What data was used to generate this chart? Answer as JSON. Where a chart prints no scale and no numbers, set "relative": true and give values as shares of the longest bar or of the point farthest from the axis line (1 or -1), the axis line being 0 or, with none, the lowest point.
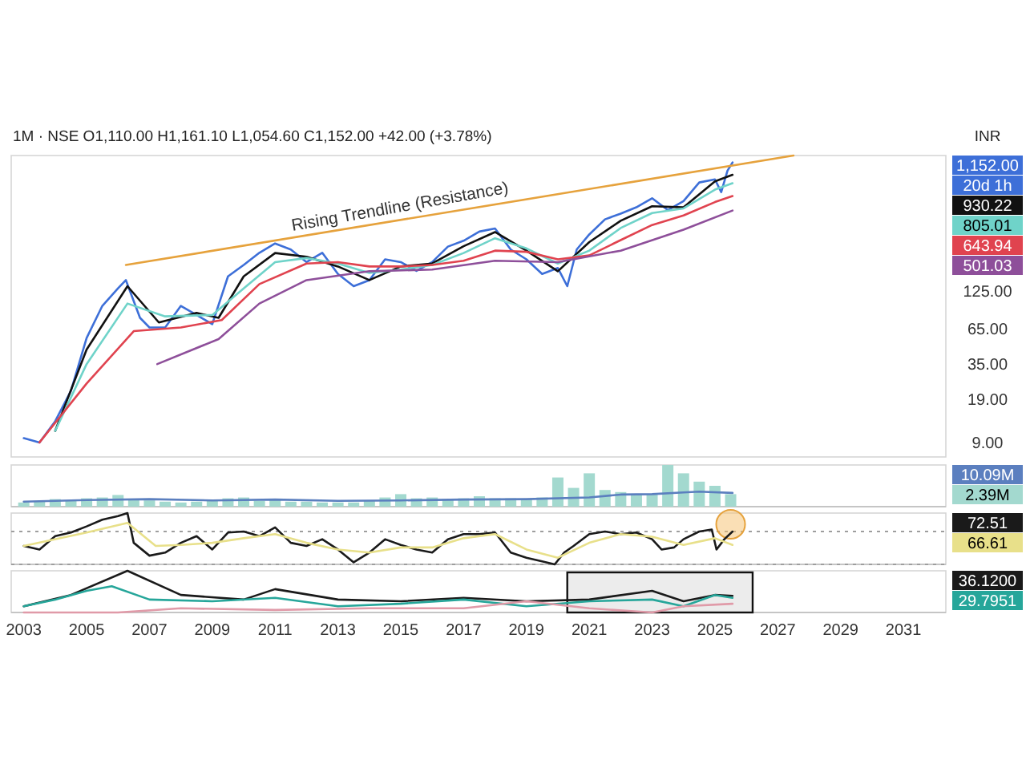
{
  "chart_data": [
    {
      "type": "line",
      "title": "1M · NSE O1,110.00 H1,161.10 L1,054.60 C1,152.00 +42.00 (+3.78%)",
      "ylabel": "INR",
      "log": true,
      "ylim": [
        7,
        1300
      ],
      "yticks": [
        {
          "value": 9,
          "label": "9.00"
        },
        {
          "value": 19,
          "label": "19.00"
        },
        {
          "value": 35,
          "label": "35.00"
        },
        {
          "value": 65,
          "label": "65.00"
        },
        {
          "value": 125,
          "label": "125.00"
        }
      ],
      "xlim": [
        2002.6,
        2032.35
      ],
      "tick_labels": "y",
      "series": [
        {
          "color": "#3d6fd8",
          "x": [
            2003,
            2003.5,
            2004,
            2004.5,
            2005,
            2005.5,
            2006,
            2006.25,
            2006.7,
            2007,
            2007.5,
            2008,
            2008.5,
            2009,
            2009.5,
            2010,
            2010.5,
            2011,
            2011.5,
            2012,
            2012.5,
            2013,
            2013.5,
            2014,
            2014.5,
            2015,
            2015.5,
            2016,
            2016.5,
            2017,
            2017.5,
            2018,
            2018.5,
            2019,
            2019.5,
            2020,
            2020.3,
            2020.6,
            2021,
            2021.5,
            2022,
            2022.5,
            2023,
            2023.5,
            2024,
            2024.5,
            2025,
            2025.2,
            2025.4,
            2025.56
          ],
          "values": [
            9.7,
            9,
            13,
            22,
            55,
            96,
            130,
            150,
            78,
            66,
            66,
            96,
            82,
            70,
            160,
            195,
            241,
            283,
            255,
            205,
            241,
            167,
            135,
            150,
            215,
            205,
            176,
            205,
            268,
            297,
            348,
            367,
            255,
            215,
            167,
            185,
            135,
            255,
            331,
            430,
            475,
            530,
            620,
            505,
            590,
            815,
            860,
            690,
            1000,
            1152
          ]
        },
        {
          "color": "#111111",
          "x": [
            2004,
            2005,
            2006.3,
            2007.3,
            2008.5,
            2009.2,
            2010,
            2011,
            2012,
            2013,
            2014,
            2015,
            2016,
            2017,
            2018,
            2019,
            2020,
            2021,
            2022,
            2023,
            2024,
            2025,
            2025.56
          ],
          "values": [
            11,
            45,
            135,
            72,
            85,
            78,
            160,
            240,
            225,
            190,
            150,
            190,
            200,
            270,
            345,
            250,
            175,
            290,
            420,
            540,
            530,
            830,
            930.22
          ]
        },
        {
          "color": "#6fd3c9",
          "x": [
            2004,
            2005,
            2006.3,
            2007.5,
            2009,
            2010,
            2011,
            2012,
            2013,
            2014,
            2015,
            2016,
            2017,
            2018,
            2019,
            2020,
            2021,
            2022,
            2023,
            2024,
            2025,
            2025.56
          ],
          "values": [
            11,
            35,
            100,
            80,
            82,
            130,
            205,
            220,
            200,
            170,
            180,
            195,
            240,
            310,
            260,
            200,
            250,
            370,
            480,
            520,
            720,
            805.01
          ]
        },
        {
          "color": "#e0434f",
          "x": [
            2003.5,
            2005,
            2006.5,
            2008,
            2009.3,
            2010.5,
            2012,
            2013,
            2014,
            2015,
            2016,
            2017,
            2018,
            2019,
            2020,
            2021,
            2022,
            2023,
            2024,
            2025,
            2025.56
          ],
          "values": [
            9,
            25,
            62,
            66,
            75,
            140,
            200,
            205,
            190,
            190,
            195,
            210,
            250,
            245,
            215,
            230,
            300,
            390,
            460,
            580,
            643.94
          ]
        },
        {
          "color": "#8e4f9a",
          "x": [
            2007.25,
            2009.2,
            2010.5,
            2012,
            2014,
            2016,
            2018,
            2020,
            2022,
            2024,
            2025.56
          ],
          "values": [
            35,
            54,
            100,
            150,
            175,
            180,
            210,
            205,
            250,
            360,
            501.03
          ]
        },
        {
          "color": "#e6a23c",
          "x": [
            2006.25,
            2027.5
          ],
          "values": [
            195,
            1300
          ]
        }
      ],
      "annotations": [
        {
          "text": "Rising Trendline (Resistance)",
          "x": 2015,
          "y": 426
        },
        "1,152.00",
        "20d 1h",
        "930.22",
        "805.01",
        "643.94",
        "501.03"
      ]
    },
    {
      "type": "bar",
      "relative": true,
      "xlim": [
        2002.6,
        2032.35
      ],
      "tick_labels": false,
      "series": [
        {
          "type": "line",
          "color": "#5b7fbf",
          "x": [
            2003,
            2005,
            2007,
            2009,
            2011,
            2013,
            2015,
            2017,
            2019,
            2021,
            2022,
            2023,
            2024,
            2024.5,
            2025.56
          ],
          "values": [
            0.12,
            0.16,
            0.18,
            0.15,
            0.17,
            0.14,
            0.15,
            0.17,
            0.18,
            0.22,
            0.29,
            0.3,
            0.34,
            0.36,
            0.33
          ]
        },
        {
          "color": "#a3d9cf",
          "x": [
            2003,
            2003.5,
            2004,
            2004.5,
            2005,
            2005.5,
            2006,
            2006.5,
            2007,
            2007.5,
            2008,
            2008.5,
            2009,
            2009.5,
            2010,
            2010.5,
            2011,
            2011.5,
            2012,
            2012.5,
            2013,
            2013.5,
            2014,
            2014.5,
            2015,
            2015.5,
            2016,
            2016.5,
            2017,
            2017.5,
            2018,
            2018.5,
            2019,
            2019.5,
            2020,
            2020.5,
            2021,
            2021.5,
            2022,
            2022.5,
            2023,
            2023.5,
            2024,
            2024.5,
            2025,
            2025.5
          ],
          "values": [
            0.1,
            0.12,
            0.18,
            0.15,
            0.2,
            0.22,
            0.28,
            0.18,
            0.15,
            0.12,
            0.1,
            0.12,
            0.14,
            0.2,
            0.22,
            0.14,
            0.18,
            0.12,
            0.12,
            0.1,
            0.1,
            0.1,
            0.15,
            0.22,
            0.3,
            0.2,
            0.22,
            0.18,
            0.2,
            0.25,
            0.2,
            0.2,
            0.18,
            0.22,
            0.7,
            0.45,
            0.8,
            0.4,
            0.35,
            0.3,
            0.3,
            1,
            0.8,
            0.6,
            0.5,
            0.3
          ]
        }
      ],
      "annotations": [
        "10.09M",
        "2.39M"
      ]
    },
    {
      "type": "line",
      "relative": true,
      "xlim": [
        2002.6,
        2032.35
      ],
      "tick_labels": false,
      "ref_lines": [
        {
          "axis": "y",
          "value": 0.64,
          "color": "#9e9e9e",
          "line_style": "dotted"
        },
        {
          "axis": "y",
          "value": 0,
          "color": "#9e9e9e",
          "line_style": "dotted"
        }
      ],
      "series": [
        {
          "color": "#1a1a1a",
          "x": [
            2003,
            2003.5,
            2004,
            2004.5,
            2005,
            2005.5,
            2006,
            2006.3,
            2006.5,
            2007,
            2007.5,
            2008,
            2008.5,
            2009,
            2009.5,
            2010,
            2010.5,
            2011,
            2011.5,
            2012,
            2012.5,
            2013,
            2013.5,
            2014,
            2014.5,
            2015,
            2015.5,
            2016,
            2016.5,
            2017,
            2017.5,
            2018,
            2018.5,
            2019,
            2019.5,
            2019.9,
            2020.2,
            2020.5,
            2021,
            2021.5,
            2022,
            2022.5,
            2023,
            2023.3,
            2023.7,
            2024,
            2024.5,
            2024.9,
            2025.05,
            2025.3,
            2025.56
          ],
          "values": [
            0.36,
            0.29,
            0.55,
            0.62,
            0.74,
            0.87,
            0.94,
            1,
            0.42,
            0.17,
            0.23,
            0.42,
            0.55,
            0.29,
            0.62,
            0.64,
            0.55,
            0.72,
            0.42,
            0.36,
            0.49,
            0.29,
            0.04,
            0.23,
            0.49,
            0.38,
            0.29,
            0.23,
            0.49,
            0.59,
            0.59,
            0.62,
            0.23,
            0.13,
            0.06,
            0,
            0.23,
            0.36,
            0.59,
            0.64,
            0.59,
            0.62,
            0.49,
            0.29,
            0.33,
            0.49,
            0.64,
            0.68,
            0.29,
            0.49,
            0.64
          ]
        },
        {
          "color": "#e8e08a",
          "x": [
            2003,
            2005,
            2006.3,
            2007.2,
            2008,
            2009,
            2010,
            2011,
            2012,
            2013,
            2014,
            2015,
            2016,
            2017,
            2018,
            2019,
            2020,
            2021,
            2022,
            2023,
            2024,
            2025,
            2025.56
          ],
          "values": [
            0.36,
            0.62,
            0.81,
            0.36,
            0.38,
            0.42,
            0.51,
            0.59,
            0.42,
            0.29,
            0.23,
            0.33,
            0.33,
            0.51,
            0.59,
            0.29,
            0.13,
            0.42,
            0.59,
            0.54,
            0.38,
            0.51,
            0.38
          ]
        }
      ],
      "annotations": [
        "72.51",
        "66.61"
      ]
    },
    {
      "type": "line",
      "relative": true,
      "xlim": [
        2002.6,
        2032.35
      ],
      "xticks": [
        2003,
        2005,
        2007,
        2009,
        2011,
        2013,
        2015,
        2017,
        2019,
        2021,
        2023,
        2025,
        2027,
        2029,
        2031
      ],
      "tick_labels": "x",
      "bands": [
        {
          "axis": "x",
          "from": 2020.3,
          "to": 2026.2,
          "color": "#ececec"
        }
      ],
      "series": [
        {
          "color": "#1a1a1a",
          "x": [
            2003,
            2004.5,
            2006.3,
            2008,
            2010,
            2011,
            2013,
            2015,
            2017,
            2019,
            2021,
            2023,
            2024,
            2025,
            2025.56
          ],
          "values": [
            0.15,
            0.42,
            1,
            0.42,
            0.31,
            0.56,
            0.31,
            0.27,
            0.35,
            0.27,
            0.31,
            0.52,
            0.27,
            0.42,
            0.4
          ]
        },
        {
          "color": "#26a69a",
          "x": [
            2003,
            2004,
            2005,
            2005.8,
            2007,
            2009,
            2011,
            2013,
            2015,
            2017,
            2019,
            2021,
            2023,
            2024,
            2025,
            2025.56
          ],
          "values": [
            0.15,
            0.31,
            0.52,
            0.63,
            0.31,
            0.27,
            0.35,
            0.15,
            0.21,
            0.31,
            0.15,
            0.27,
            0.31,
            0.15,
            0.42,
            0.35
          ]
        },
        {
          "color": "#e09aa8",
          "x": [
            2003,
            2006,
            2008,
            2011,
            2014,
            2017,
            2019,
            2021,
            2023,
            2024,
            2025.56
          ],
          "values": [
            0,
            0,
            0.1,
            0.06,
            0.1,
            0.1,
            0.27,
            0.1,
            0,
            0.15,
            0.21
          ]
        }
      ],
      "annotations": [
        "36.1200",
        "29.7951"
      ]
    }
  ]
}
